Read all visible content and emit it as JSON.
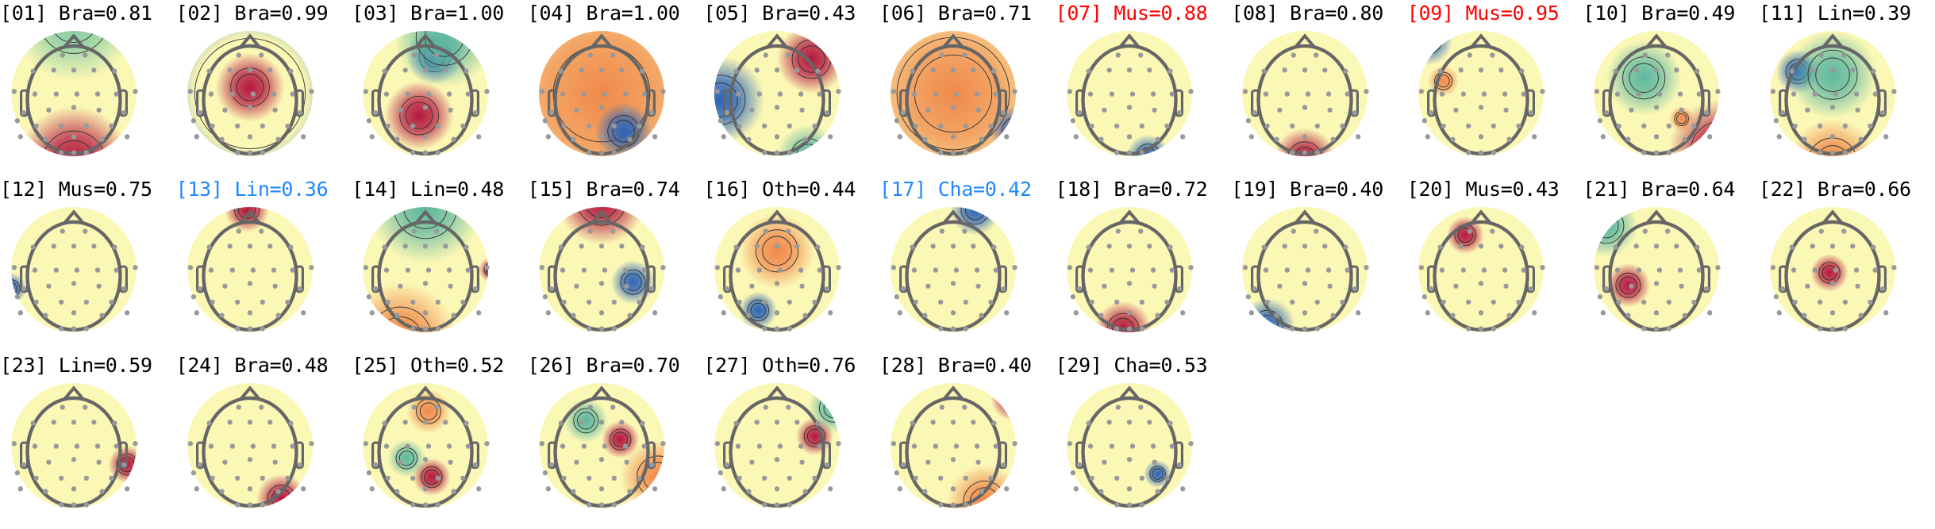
{
  "colors": {
    "default_title": "#000000",
    "muscle_flag": "#ff0000",
    "line_channel_flag": "#1e88ff",
    "colormap": "Spectral_r"
  },
  "chart_data": {
    "type": "heatmap",
    "layout": "grid of scalp topographic maps, 11 per row",
    "components": [
      {
        "index": "01",
        "label": "Bra",
        "score": "0.81",
        "title": "[01] Bra=0.81",
        "title_color": "#000000"
      },
      {
        "index": "02",
        "label": "Bra",
        "score": "0.99",
        "title": "[02] Bra=0.99",
        "title_color": "#000000"
      },
      {
        "index": "03",
        "label": "Bra",
        "score": "1.00",
        "title": "[03] Bra=1.00",
        "title_color": "#000000"
      },
      {
        "index": "04",
        "label": "Bra",
        "score": "1.00",
        "title": "[04] Bra=1.00",
        "title_color": "#000000"
      },
      {
        "index": "05",
        "label": "Bra",
        "score": "0.43",
        "title": "[05] Bra=0.43",
        "title_color": "#000000"
      },
      {
        "index": "06",
        "label": "Bra",
        "score": "0.71",
        "title": "[06] Bra=0.71",
        "title_color": "#000000"
      },
      {
        "index": "07",
        "label": "Mus",
        "score": "0.88",
        "title": "[07] Mus=0.88",
        "title_color": "#ff0000"
      },
      {
        "index": "08",
        "label": "Bra",
        "score": "0.80",
        "title": "[08] Bra=0.80",
        "title_color": "#000000"
      },
      {
        "index": "09",
        "label": "Mus",
        "score": "0.95",
        "title": "[09] Mus=0.95",
        "title_color": "#ff0000"
      },
      {
        "index": "10",
        "label": "Bra",
        "score": "0.49",
        "title": "[10] Bra=0.49",
        "title_color": "#000000"
      },
      {
        "index": "11",
        "label": "Lin",
        "score": "0.39",
        "title": "[11] Lin=0.39",
        "title_color": "#000000"
      },
      {
        "index": "12",
        "label": "Mus",
        "score": "0.75",
        "title": "[12] Mus=0.75",
        "title_color": "#000000"
      },
      {
        "index": "13",
        "label": "Lin",
        "score": "0.36",
        "title": "[13] Lin=0.36",
        "title_color": "#1e88ff"
      },
      {
        "index": "14",
        "label": "Lin",
        "score": "0.48",
        "title": "[14] Lin=0.48",
        "title_color": "#000000"
      },
      {
        "index": "15",
        "label": "Bra",
        "score": "0.74",
        "title": "[15] Bra=0.74",
        "title_color": "#000000"
      },
      {
        "index": "16",
        "label": "Oth",
        "score": "0.44",
        "title": "[16] Oth=0.44",
        "title_color": "#000000"
      },
      {
        "index": "17",
        "label": "Cha",
        "score": "0.42",
        "title": "[17] Cha=0.42",
        "title_color": "#1e88ff"
      },
      {
        "index": "18",
        "label": "Bra",
        "score": "0.72",
        "title": "[18] Bra=0.72",
        "title_color": "#000000"
      },
      {
        "index": "19",
        "label": "Bra",
        "score": "0.40",
        "title": "[19] Bra=0.40",
        "title_color": "#000000"
      },
      {
        "index": "20",
        "label": "Mus",
        "score": "0.43",
        "title": "[20] Mus=0.43",
        "title_color": "#000000"
      },
      {
        "index": "21",
        "label": "Bra",
        "score": "0.64",
        "title": "[21] Bra=0.64",
        "title_color": "#000000"
      },
      {
        "index": "22",
        "label": "Bra",
        "score": "0.66",
        "title": "[22] Bra=0.66",
        "title_color": "#000000"
      },
      {
        "index": "23",
        "label": "Lin",
        "score": "0.59",
        "title": "[23] Lin=0.59",
        "title_color": "#000000"
      },
      {
        "index": "24",
        "label": "Bra",
        "score": "0.48",
        "title": "[24] Bra=0.48",
        "title_color": "#000000"
      },
      {
        "index": "25",
        "label": "Oth",
        "score": "0.52",
        "title": "[25] Oth=0.52",
        "title_color": "#000000"
      },
      {
        "index": "26",
        "label": "Bra",
        "score": "0.70",
        "title": "[26] Bra=0.70",
        "title_color": "#000000"
      },
      {
        "index": "27",
        "label": "Oth",
        "score": "0.76",
        "title": "[27] Oth=0.76",
        "title_color": "#000000"
      },
      {
        "index": "28",
        "label": "Bra",
        "score": "0.40",
        "title": "[28] Bra=0.40",
        "title_color": "#000000"
      },
      {
        "index": "29",
        "label": "Cha",
        "score": "0.53",
        "title": "[29] Cha=0.53",
        "title_color": "#000000"
      }
    ]
  }
}
